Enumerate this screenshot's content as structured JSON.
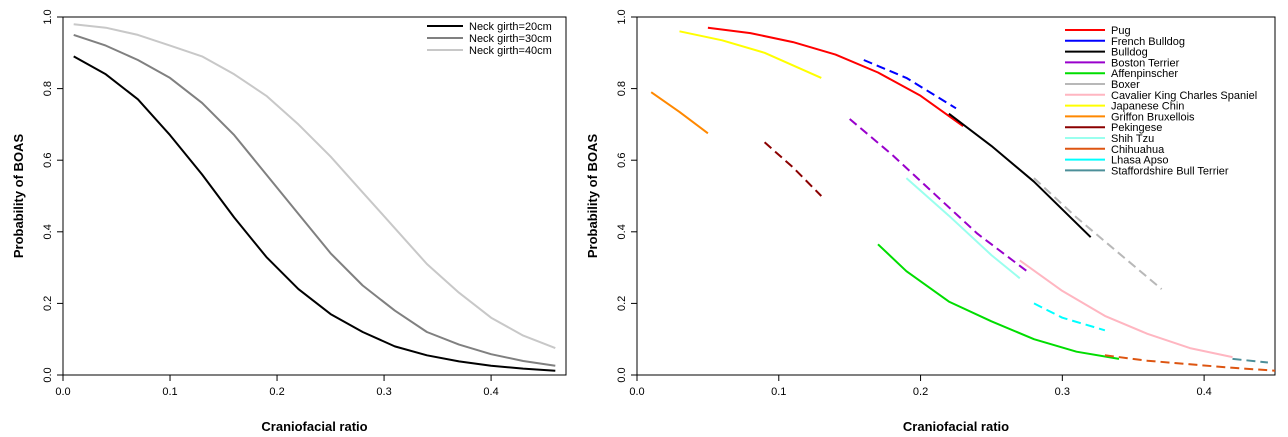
{
  "chart_data": [
    {
      "type": "line",
      "xlabel": "Craniofacial ratio",
      "ylabel": "Probability of BOAS",
      "xlim": [
        0.0,
        0.47
      ],
      "ylim": [
        0.0,
        1.0
      ],
      "x_ticks": [
        "0.0",
        "0.1",
        "0.2",
        "0.3",
        "0.4"
      ],
      "y_ticks": [
        "0.0",
        "0.2",
        "0.4",
        "0.6",
        "0.8",
        "1.0"
      ],
      "legend_position": "top-right",
      "grid": false,
      "series": [
        {
          "name": "Neck girth=20cm",
          "color": "#000000",
          "dashed": false,
          "x": [
            0.01,
            0.04,
            0.07,
            0.1,
            0.13,
            0.16,
            0.19,
            0.22,
            0.25,
            0.28,
            0.31,
            0.34,
            0.37,
            0.4,
            0.43,
            0.46
          ],
          "y": [
            0.89,
            0.84,
            0.77,
            0.67,
            0.56,
            0.44,
            0.33,
            0.24,
            0.17,
            0.12,
            0.08,
            0.055,
            0.038,
            0.026,
            0.018,
            0.012
          ]
        },
        {
          "name": "Neck girth=30cm",
          "color": "#808080",
          "dashed": false,
          "x": [
            0.01,
            0.04,
            0.07,
            0.1,
            0.13,
            0.16,
            0.19,
            0.22,
            0.25,
            0.28,
            0.31,
            0.34,
            0.37,
            0.4,
            0.43,
            0.46
          ],
          "y": [
            0.95,
            0.92,
            0.88,
            0.83,
            0.76,
            0.67,
            0.56,
            0.45,
            0.34,
            0.25,
            0.18,
            0.12,
            0.085,
            0.058,
            0.039,
            0.026
          ]
        },
        {
          "name": "Neck girth=40cm",
          "color": "#c8c8c8",
          "dashed": false,
          "x": [
            0.01,
            0.04,
            0.07,
            0.1,
            0.13,
            0.16,
            0.19,
            0.22,
            0.25,
            0.28,
            0.31,
            0.34,
            0.37,
            0.4,
            0.43,
            0.46
          ],
          "y": [
            0.98,
            0.97,
            0.95,
            0.92,
            0.89,
            0.84,
            0.78,
            0.7,
            0.61,
            0.51,
            0.41,
            0.31,
            0.23,
            0.16,
            0.11,
            0.075
          ]
        }
      ]
    },
    {
      "type": "line",
      "xlabel": "Craniofacial ratio",
      "ylabel": "Probability of BOAS",
      "xlim": [
        0.0,
        0.45
      ],
      "ylim": [
        0.0,
        1.0
      ],
      "x_ticks": [
        "0.0",
        "0.1",
        "0.2",
        "0.3",
        "0.4"
      ],
      "y_ticks": [
        "0.0",
        "0.2",
        "0.4",
        "0.6",
        "0.8",
        "1.0"
      ],
      "legend_position": "top-right",
      "grid": false,
      "series": [
        {
          "name": "Pug",
          "color": "#ff0000",
          "dashed": false,
          "x": [
            0.05,
            0.08,
            0.11,
            0.14,
            0.17,
            0.2,
            0.23
          ],
          "y": [
            0.97,
            0.955,
            0.93,
            0.895,
            0.845,
            0.78,
            0.695
          ]
        },
        {
          "name": "French Bulldog",
          "color": "#0000ff",
          "dashed": true,
          "x": [
            0.16,
            0.19,
            0.225
          ],
          "y": [
            0.88,
            0.83,
            0.745
          ]
        },
        {
          "name": "Bulldog",
          "color": "#000000",
          "dashed": false,
          "x": [
            0.22,
            0.25,
            0.28,
            0.32
          ],
          "y": [
            0.73,
            0.64,
            0.54,
            0.385
          ]
        },
        {
          "name": "Boston Terrier",
          "color": "#9900cc",
          "dashed": true,
          "x": [
            0.15,
            0.18,
            0.21,
            0.24,
            0.275
          ],
          "y": [
            0.715,
            0.615,
            0.505,
            0.395,
            0.29
          ]
        },
        {
          "name": "Affenpinscher",
          "color": "#00dd00",
          "dashed": false,
          "x": [
            0.17,
            0.19,
            0.22,
            0.25,
            0.28,
            0.31,
            0.34
          ],
          "y": [
            0.365,
            0.29,
            0.205,
            0.15,
            0.1,
            0.065,
            0.045
          ]
        },
        {
          "name": "Boxer",
          "color": "#b8b8b8",
          "dashed": true,
          "x": [
            0.28,
            0.31,
            0.34,
            0.37
          ],
          "y": [
            0.55,
            0.44,
            0.34,
            0.24
          ]
        },
        {
          "name": "Cavalier King Charles Spaniel",
          "color": "#ffb6c1",
          "dashed": false,
          "x": [
            0.27,
            0.3,
            0.33,
            0.36,
            0.39,
            0.42
          ],
          "y": [
            0.32,
            0.235,
            0.165,
            0.115,
            0.075,
            0.05
          ]
        },
        {
          "name": "Japanese Chin",
          "color": "#ffff00",
          "dashed": false,
          "x": [
            0.03,
            0.06,
            0.09,
            0.13
          ],
          "y": [
            0.96,
            0.935,
            0.9,
            0.83
          ]
        },
        {
          "name": "Griffon Bruxellois",
          "color": "#ff8800",
          "dashed": false,
          "x": [
            0.01,
            0.03,
            0.05
          ],
          "y": [
            0.79,
            0.735,
            0.675
          ]
        },
        {
          "name": "Pekingese",
          "color": "#8b0000",
          "dashed": true,
          "x": [
            0.09,
            0.11,
            0.13
          ],
          "y": [
            0.65,
            0.58,
            0.5
          ]
        },
        {
          "name": "Shih Tzu",
          "color": "#99ffee",
          "dashed": false,
          "x": [
            0.19,
            0.22,
            0.25,
            0.27
          ],
          "y": [
            0.55,
            0.445,
            0.335,
            0.27
          ]
        },
        {
          "name": "Chihuahua",
          "color": "#dd5511",
          "dashed": true,
          "x": [
            0.33,
            0.36,
            0.39,
            0.42,
            0.45
          ],
          "y": [
            0.055,
            0.04,
            0.03,
            0.02,
            0.012
          ]
        },
        {
          "name": "Lhasa Apso",
          "color": "#00ffff",
          "dashed": true,
          "x": [
            0.28,
            0.3,
            0.33
          ],
          "y": [
            0.2,
            0.16,
            0.125
          ]
        },
        {
          "name": "Staffordshire Bull Terrier",
          "color": "#4c8f99",
          "dashed": true,
          "x": [
            0.42,
            0.445
          ],
          "y": [
            0.045,
            0.035
          ]
        }
      ]
    }
  ]
}
